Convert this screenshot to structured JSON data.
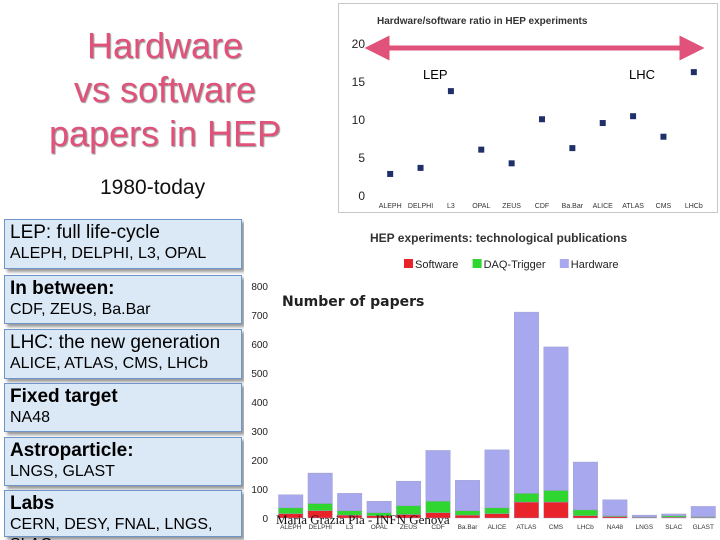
{
  "slide": {
    "title_lines": [
      "Hardware",
      "vs software",
      "papers in HEP"
    ],
    "subtitle": "1980-today",
    "footer": "Maria Grazia Pia - INFN Genova"
  },
  "boxes": [
    {
      "head_bold": "LEP",
      "head_rest": ": full life-cycle",
      "sub": "ALEPH, DELPHI, L3, OPAL"
    },
    {
      "head_bold": "In between:",
      "head_rest": "",
      "sub": "CDF, ZEUS, Ba.Bar"
    },
    {
      "head_bold": "LHC",
      "head_rest": ": the new generation",
      "sub": "ALICE, ATLAS, CMS, LHCb"
    },
    {
      "head_bold": "Fixed target",
      "head_rest": "",
      "sub": "NA48"
    },
    {
      "head_bold": "Astroparticle:",
      "head_rest": "",
      "sub": "LNGS, GLAST"
    },
    {
      "head_bold": "Labs",
      "head_rest": "",
      "sub": "CERN, DESY, FNAL, LNGS, SLAC"
    }
  ],
  "colors": {
    "software": "#e8232a",
    "daq": "#2fd62f",
    "hardware": "#a8a8ee",
    "marker": "#1f2f6a",
    "arrow": "#e0527a"
  },
  "chart_data": [
    {
      "type": "scatter",
      "title": "Hardware/software ratio in HEP experiments",
      "categories": [
        "ALEPH",
        "DELPHI",
        "L3",
        "OPAL",
        "ZEUS",
        "CDF",
        "Ba.Bar",
        "ALICE",
        "ATLAS",
        "CMS",
        "LHCb"
      ],
      "values": [
        2.9,
        3.7,
        13.8,
        6.1,
        4.3,
        10.1,
        6.3,
        9.6,
        10.5,
        7.8,
        16.3
      ],
      "ylim": [
        0,
        20
      ],
      "yticks": [
        0,
        5,
        10,
        15,
        20
      ],
      "annotations": [
        "LEP",
        "LHC"
      ],
      "grid": false
    },
    {
      "type": "bar",
      "stacked": true,
      "title": "HEP experiments: technological publications",
      "ylabel": "Number of papers",
      "categories": [
        "ALEPH",
        "DELPHI",
        "L3",
        "OPAL",
        "ZEUS",
        "CDF",
        "Ba.Bar",
        "ALICE",
        "ATLAS",
        "CMS",
        "LHCb",
        "NA48",
        "LNGS",
        "SLAC",
        "GLAST"
      ],
      "series": [
        {
          "name": "Software",
          "values": [
            15,
            25,
            10,
            8,
            12,
            18,
            10,
            15,
            55,
            55,
            8,
            5,
            2,
            3,
            2
          ]
        },
        {
          "name": "DAQ-Trigger",
          "values": [
            20,
            25,
            15,
            10,
            30,
            40,
            15,
            20,
            30,
            40,
            20,
            3,
            2,
            5,
            3
          ]
        },
        {
          "name": "Hardware",
          "values": [
            45,
            105,
            60,
            40,
            85,
            175,
            105,
            200,
            625,
            495,
            165,
            55,
            6,
            6,
            35
          ]
        }
      ],
      "ylim": [
        0,
        800
      ],
      "yticks": [
        0,
        100,
        200,
        300,
        400,
        500,
        600,
        700,
        800
      ],
      "legend": "top",
      "grid": false
    }
  ]
}
